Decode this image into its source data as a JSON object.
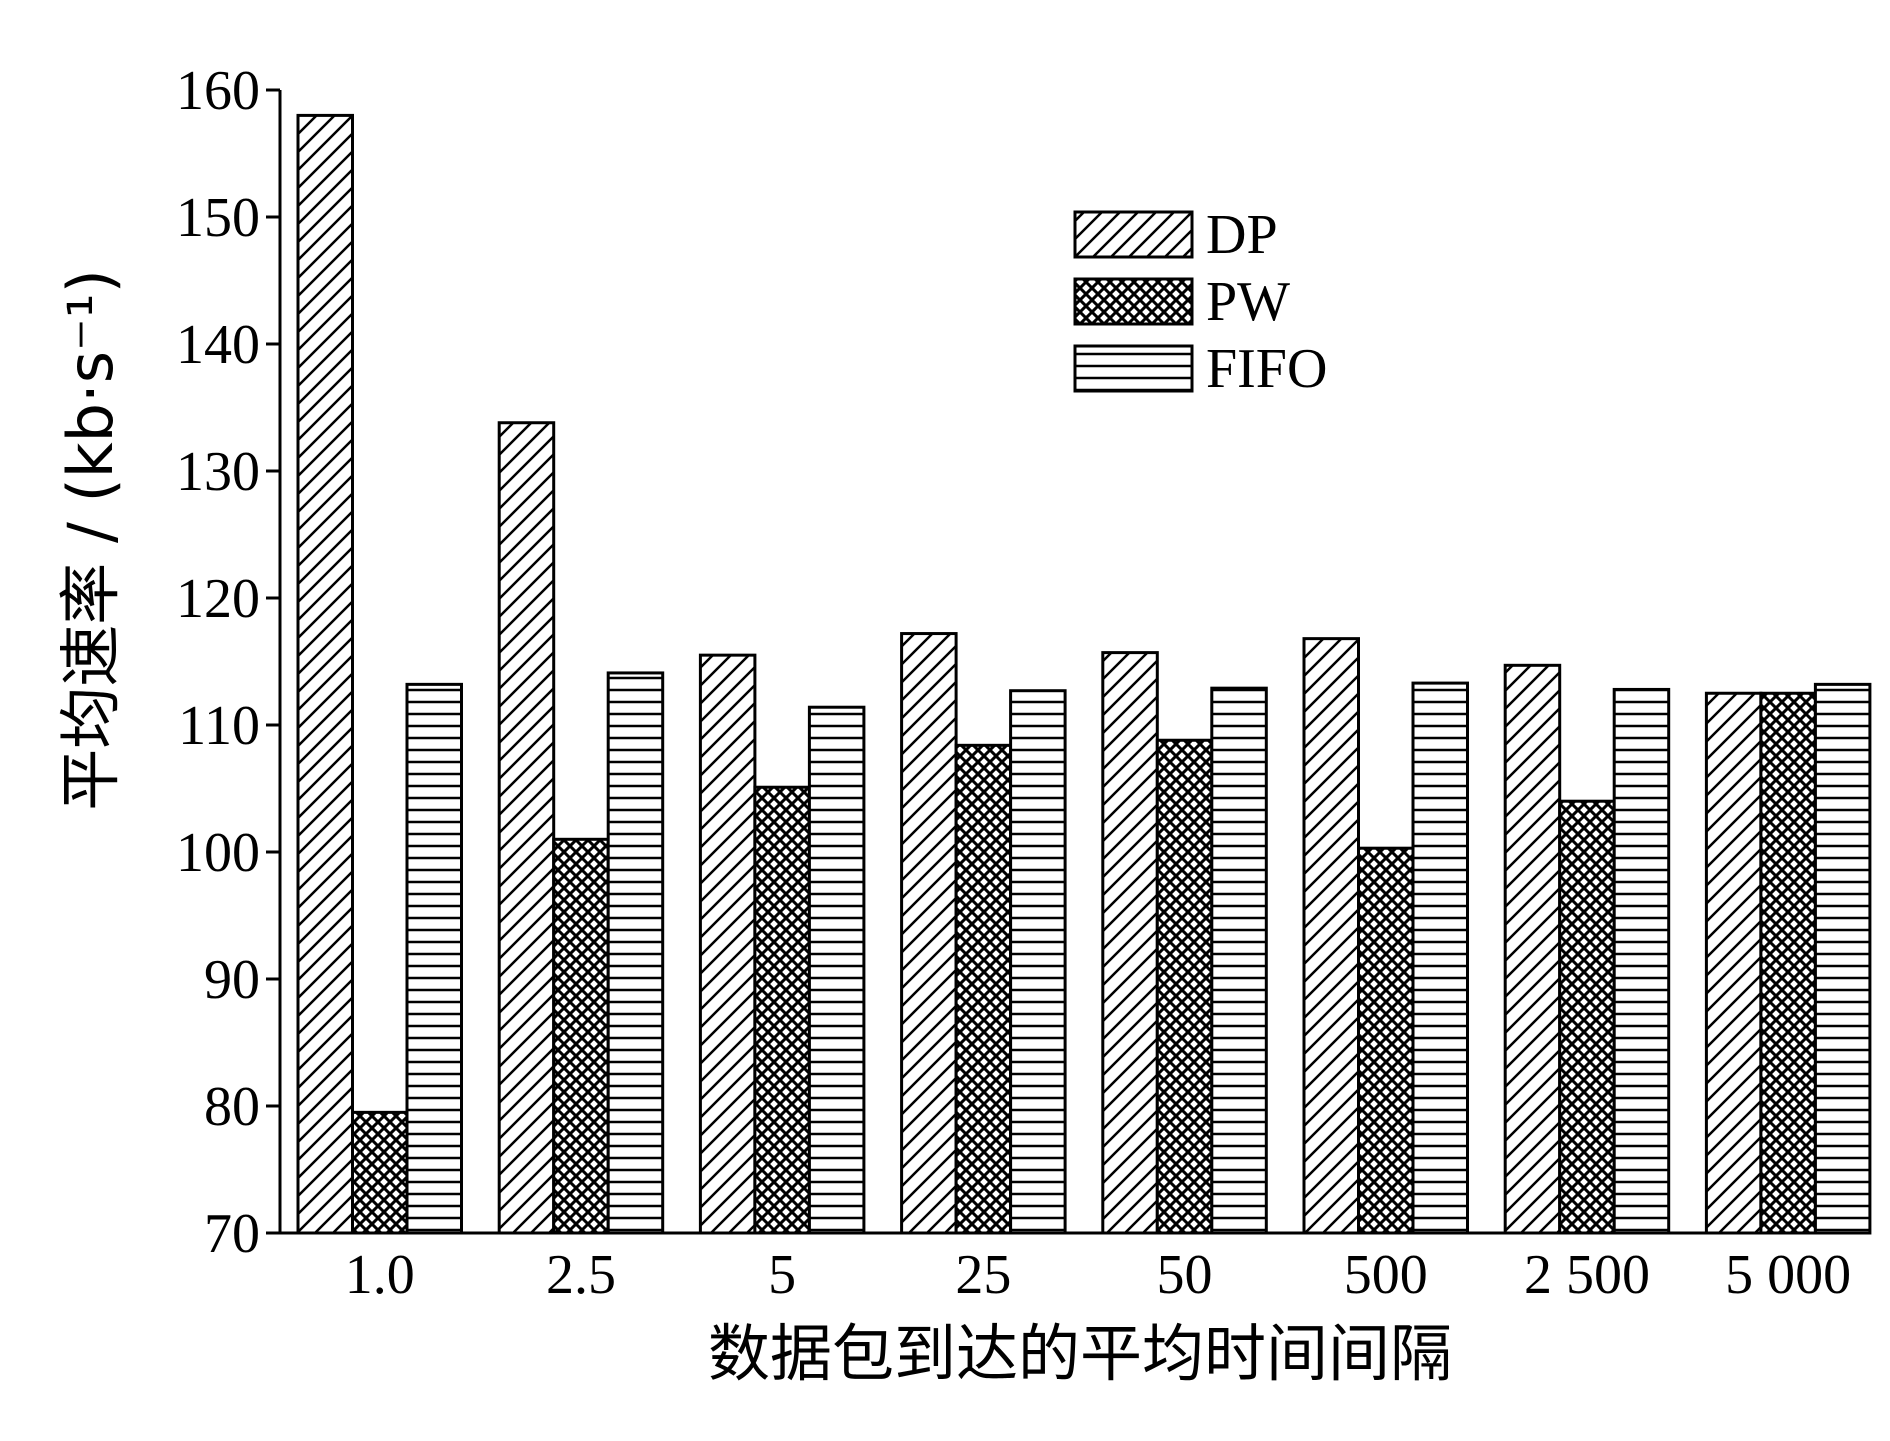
{
  "chart_data": {
    "type": "bar",
    "categories": [
      "1.0",
      "2.5",
      "5",
      "25",
      "50",
      "500",
      "2 500",
      "5 000"
    ],
    "series": [
      {
        "name": "DP",
        "values": [
          158,
          133.8,
          115.5,
          117.2,
          115.7,
          116.8,
          114.7,
          112.5
        ],
        "pattern": "diagonal"
      },
      {
        "name": "PW",
        "values": [
          79.5,
          101,
          105.1,
          108.4,
          108.8,
          100.3,
          104,
          112.5
        ],
        "pattern": "crosshatch"
      },
      {
        "name": "FIFO",
        "values": [
          113.2,
          114.1,
          111.4,
          112.7,
          112.9,
          113.3,
          112.8,
          113.2
        ],
        "pattern": "horizontal"
      }
    ],
    "title": "",
    "xlabel": "数据包到达的平均时间间隔",
    "ylabel": "平均速率 / (kb·s⁻¹)",
    "ylim": [
      70,
      160
    ],
    "yticks": [
      "70",
      "80",
      "90",
      "100",
      "110",
      "120",
      "130",
      "140",
      "150",
      "160"
    ],
    "legend_position": "top-right",
    "grid": false,
    "colors": {
      "axis": "#000000",
      "fill": "#ffffff",
      "pattern": "#000000"
    }
  }
}
